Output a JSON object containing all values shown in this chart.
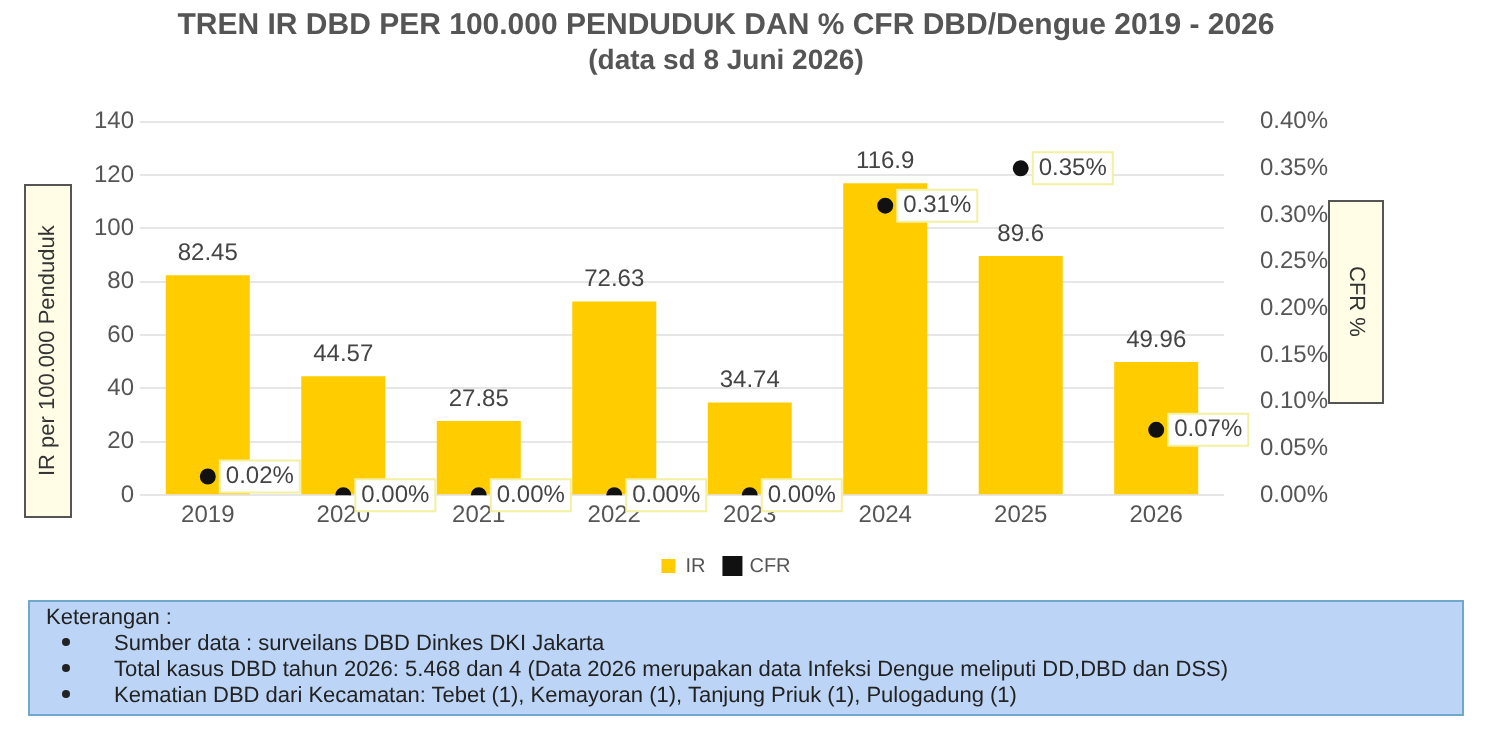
{
  "chart_data": {
    "type": "bar",
    "title": "TREN IR DBD PER 100.000 PENDUDUK DAN % CFR DBD/Dengue 2019 - 2026",
    "subtitle": "(data sd 8 Juni 2026)",
    "ylabel": "IR per 100.000 Penduduk",
    "y2label": "CFR %",
    "categories": [
      "2019",
      "2020",
      "2021",
      "2022",
      "2023",
      "2024",
      "2025",
      "2026"
    ],
    "series": [
      {
        "name": "IR",
        "color": "#ffcc00",
        "values": [
          82.45,
          44.57,
          27.85,
          72.63,
          34.74,
          116.9,
          89.6,
          49.96
        ],
        "value_labels": [
          "82.45",
          "44.57",
          "27.85",
          "72.63",
          "34.74",
          "116.9",
          "89.6",
          "49.96"
        ]
      },
      {
        "name": "CFR",
        "type": "scatter",
        "axis": "y2",
        "color": "#111111",
        "values": [
          0.02,
          0,
          0,
          0,
          0,
          0.31,
          0.35,
          0.07
        ],
        "value_labels": [
          "0.02%",
          "0.00%",
          "0.00%",
          "0.00%",
          "0.00%",
          "0.31%",
          "0.35%",
          "0.07%"
        ]
      }
    ],
    "ylim": [
      0,
      140
    ],
    "yticks": [
      0,
      20,
      40,
      60,
      80,
      100,
      120,
      140
    ],
    "y2lim": [
      0,
      0.4
    ],
    "y2ticks": [
      {
        "value": 0,
        "label": "0.00%"
      },
      {
        "value": 0.05,
        "label": "0.05%"
      },
      {
        "value": 0.1,
        "label": "0.10%"
      },
      {
        "value": 0.15,
        "label": "0.15%"
      },
      {
        "value": 0.2,
        "label": "0.20%"
      },
      {
        "value": 0.25,
        "label": "0.25%"
      },
      {
        "value": 0.3,
        "label": "0.30%"
      },
      {
        "value": 0.35,
        "label": "0.35%"
      },
      {
        "value": 0.4,
        "label": "0.40%"
      }
    ],
    "grid": "y",
    "legend": "bottom",
    "marker": "circle",
    "annotations": [
      "Keterangan :",
      "Sumber data : surveilans DBD Dinkes DKI Jakarta",
      "Total kasus DBD tahun 2026: 5.468 dan 4 (Data 2026 merupakan data Infeksi Dengue meliputi DD,DBD dan DSS)",
      "Kematian DBD dari Kecamatan: Tebet (1), Kemayoran (1), Tanjung Priuk (1), Pulogadung (1)"
    ]
  }
}
